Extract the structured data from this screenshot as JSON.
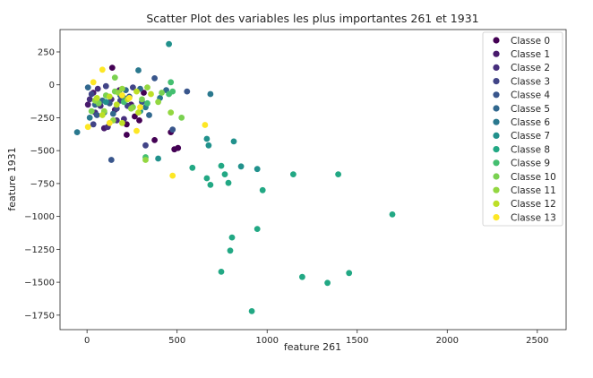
{
  "chart_data": {
    "type": "scatter",
    "title": "Scatter Plot des variables les plus importantes 261 et 1931",
    "xlabel": "feature 261",
    "ylabel": "feature 1931",
    "xlim": [
      -150,
      2660
    ],
    "ylim": [
      -1860,
      420
    ],
    "xticks": [
      0,
      500,
      1000,
      1500,
      2000,
      2500
    ],
    "yticks": [
      250,
      0,
      -250,
      -500,
      -750,
      -1000,
      -1250,
      -1500,
      -1750
    ],
    "xtick_labels": [
      "0",
      "500",
      "1000",
      "1500",
      "2000",
      "2500"
    ],
    "ytick_labels": [
      "250",
      "0",
      "−250",
      "−500",
      "−750",
      "−1000",
      "−1250",
      "−1500",
      "−1750"
    ],
    "grid": false,
    "legend_placement": "top-right",
    "series": [
      {
        "name": "Classe 0",
        "color": "#440154",
        "points": [
          [
            140,
            130
          ],
          [
            315,
            -60
          ],
          [
            265,
            -240
          ],
          [
            220,
            -300
          ],
          [
            375,
            -420
          ],
          [
            465,
            -360
          ],
          [
            485,
            -490
          ],
          [
            505,
            -480
          ],
          [
            220,
            -380
          ],
          [
            290,
            -270
          ]
        ]
      },
      {
        "name": "Classe 1",
        "color": "#481a6c",
        "points": [
          [
            5,
            -150
          ],
          [
            35,
            -60
          ],
          [
            155,
            -190
          ],
          [
            245,
            -150
          ],
          [
            95,
            -330
          ],
          [
            180,
            -40
          ]
        ]
      },
      {
        "name": "Classe 2",
        "color": "#472f7d",
        "points": [
          [
            15,
            -110
          ],
          [
            45,
            -210
          ],
          [
            75,
            -160
          ],
          [
            135,
            -110
          ],
          [
            205,
            -260
          ],
          [
            115,
            -320
          ],
          [
            165,
            -270
          ],
          [
            60,
            -30
          ]
        ]
      },
      {
        "name": "Classe 3",
        "color": "#414487",
        "points": [
          [
            25,
            -70
          ],
          [
            105,
            -10
          ],
          [
            165,
            -180
          ],
          [
            225,
            -160
          ],
          [
            325,
            -460
          ],
          [
            255,
            -20
          ],
          [
            35,
            -300
          ],
          [
            185,
            -120
          ]
        ]
      },
      {
        "name": "Classe 4",
        "color": "#39568c",
        "points": [
          [
            55,
            -230
          ],
          [
            125,
            -140
          ],
          [
            185,
            -80
          ],
          [
            305,
            -130
          ],
          [
            375,
            50
          ],
          [
            475,
            -340
          ],
          [
            135,
            -570
          ],
          [
            555,
            -50
          ],
          [
            235,
            -90
          ]
        ]
      },
      {
        "name": "Classe 5",
        "color": "#31688e",
        "points": [
          [
            5,
            -20
          ],
          [
            45,
            -150
          ],
          [
            85,
            -120
          ],
          [
            145,
            -220
          ],
          [
            215,
            -40
          ],
          [
            295,
            -30
          ],
          [
            345,
            -230
          ],
          [
            440,
            -40
          ]
        ]
      },
      {
        "name": "Classe 6",
        "color": "#2a788e",
        "points": [
          [
            -55,
            -360
          ],
          [
            15,
            -250
          ],
          [
            95,
            -210
          ],
          [
            205,
            -100
          ],
          [
            285,
            110
          ],
          [
            325,
            -170
          ],
          [
            405,
            -100
          ],
          [
            685,
            -70
          ]
        ]
      },
      {
        "name": "Classe 7",
        "color": "#21918c",
        "points": [
          [
            455,
            310
          ],
          [
            395,
            -560
          ],
          [
            665,
            -410
          ],
          [
            815,
            -430
          ],
          [
            855,
            -620
          ],
          [
            945,
            -640
          ],
          [
            675,
            -460
          ],
          [
            105,
            -130
          ],
          [
            295,
            -200
          ]
        ]
      },
      {
        "name": "Classe 8",
        "color": "#22a884",
        "points": [
          [
            585,
            -630
          ],
          [
            745,
            -615
          ],
          [
            765,
            -680
          ],
          [
            785,
            -745
          ],
          [
            945,
            -1095
          ],
          [
            805,
            -1160
          ],
          [
            795,
            -1260
          ],
          [
            745,
            -1420
          ],
          [
            915,
            -1720
          ],
          [
            1195,
            -1460
          ],
          [
            1335,
            -1505
          ],
          [
            1455,
            -1430
          ],
          [
            1145,
            -680
          ],
          [
            1395,
            -680
          ],
          [
            1695,
            -985
          ],
          [
            975,
            -800
          ],
          [
            685,
            -760
          ],
          [
            665,
            -710
          ]
        ]
      },
      {
        "name": "Classe 9",
        "color": "#44bf70",
        "points": [
          [
            455,
            -70
          ],
          [
            475,
            -50
          ],
          [
            465,
            20
          ],
          [
            205,
            -130
          ],
          [
            335,
            -140
          ],
          [
            325,
            -550
          ]
        ]
      },
      {
        "name": "Classe 10",
        "color": "#7ad151",
        "points": [
          [
            25,
            -200
          ],
          [
            65,
            -140
          ],
          [
            105,
            -80
          ],
          [
            155,
            -50
          ],
          [
            255,
            -170
          ],
          [
            305,
            -110
          ],
          [
            415,
            -60
          ],
          [
            525,
            -250
          ],
          [
            155,
            55
          ]
        ]
      },
      {
        "name": "Classe 11",
        "color": "#93d741",
        "points": [
          [
            45,
            -120
          ],
          [
            95,
            -200
          ],
          [
            145,
            -270
          ],
          [
            195,
            -30
          ],
          [
            245,
            -180
          ],
          [
            335,
            -20
          ],
          [
            395,
            -130
          ],
          [
            465,
            -210
          ],
          [
            325,
            -570
          ],
          [
            175,
            -60
          ]
        ]
      },
      {
        "name": "Classe 12",
        "color": "#bddf26",
        "points": [
          [
            125,
            -90
          ],
          [
            165,
            -150
          ],
          [
            225,
            -110
          ],
          [
            275,
            -50
          ],
          [
            355,
            -70
          ],
          [
            55,
            -100
          ],
          [
            85,
            -230
          ],
          [
            195,
            -290
          ],
          [
            285,
            -210
          ]
        ]
      },
      {
        "name": "Classe 13",
        "color": "#fde725",
        "points": [
          [
            5,
            -320
          ],
          [
            35,
            20
          ],
          [
            85,
            115
          ],
          [
            195,
            -80
          ],
          [
            275,
            -350
          ],
          [
            295,
            -170
          ],
          [
            475,
            -690
          ],
          [
            655,
            -305
          ],
          [
            125,
            -290
          ],
          [
            235,
            -100
          ]
        ]
      }
    ]
  }
}
